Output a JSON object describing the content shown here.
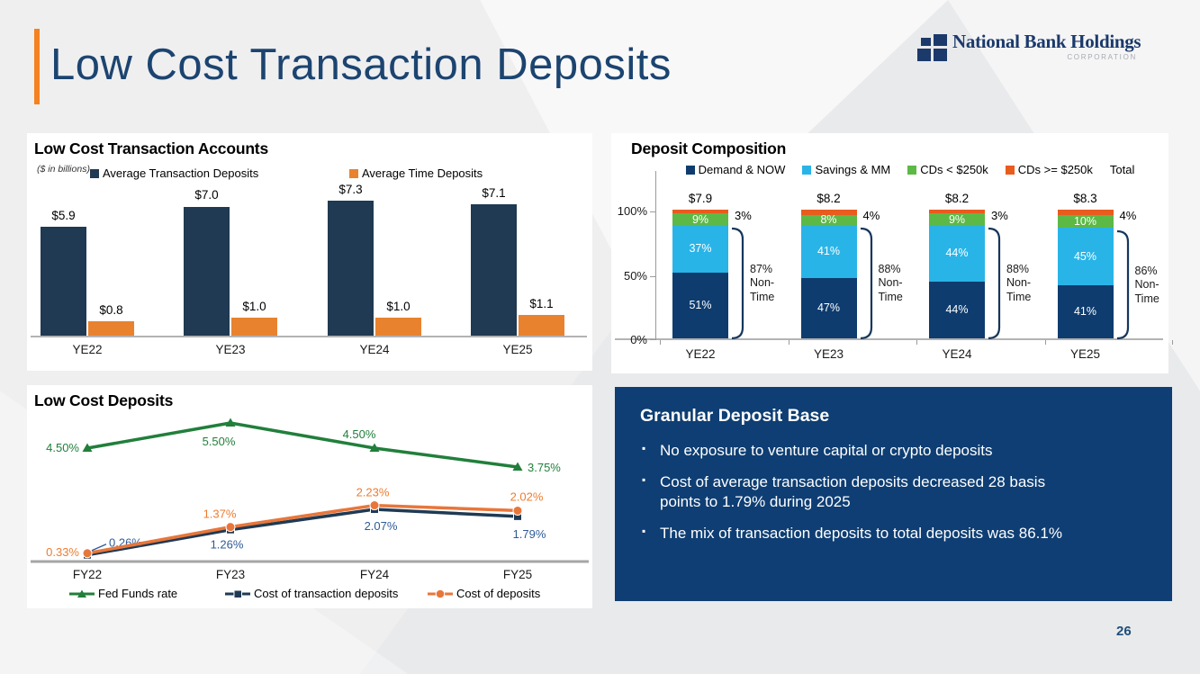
{
  "slide": {
    "title": "Low Cost Transaction Deposits",
    "title_color": "#1c4470",
    "accent_color": "#f58220",
    "page_number": "26",
    "page_number_color": "#1f4e79"
  },
  "logo": {
    "name": "National Bank Holdings",
    "subtitle": "CORPORATION",
    "color": "#1b3a6b"
  },
  "chart_data": [
    {
      "type": "bar",
      "title": "Low Cost Transaction Accounts",
      "subtitle": "($ in billions)",
      "categories": [
        "YE22",
        "YE23",
        "YE24",
        "YE25"
      ],
      "series": [
        {
          "name": "Average Transaction Deposits",
          "color": "#1f3a52",
          "values": [
            5.9,
            7.0,
            7.3,
            7.1
          ],
          "labels": [
            "$5.9",
            "$7.0",
            "$7.3",
            "$7.1"
          ]
        },
        {
          "name": "Average Time Deposits",
          "color": "#e8822f",
          "values": [
            0.8,
            1.0,
            1.0,
            1.1
          ],
          "labels": [
            "$0.8",
            "$1.0",
            "$1.0",
            "$1.1"
          ]
        }
      ],
      "ylim": [
        0,
        7.5
      ],
      "legend_position": "top"
    },
    {
      "type": "bar",
      "stacked": "100%",
      "title": "Deposit Composition",
      "categories": [
        "YE22",
        "YE23",
        "YE24",
        "YE25"
      ],
      "totals": [
        "$7.9",
        "$8.2",
        "$8.2",
        "$8.3"
      ],
      "series": [
        {
          "name": "Demand & NOW",
          "color": "#0e3c6f",
          "values": [
            51,
            47,
            44,
            41
          ]
        },
        {
          "name": "Savings & MM",
          "color": "#29b4e8",
          "values": [
            37,
            41,
            44,
            45
          ]
        },
        {
          "name": "CDs < $250k",
          "color": "#5db946",
          "values": [
            9,
            8,
            9,
            10
          ]
        },
        {
          "name": "CDs >= $250k",
          "color": "#e85c1e",
          "values": [
            3,
            4,
            3,
            4
          ]
        }
      ],
      "legend_extra": "Total",
      "non_time": {
        "values": [
          "87%",
          "88%",
          "88%",
          "86%"
        ],
        "label_line1": "Non-",
        "label_line2": "Time"
      },
      "yticks": [
        "100%",
        "50%",
        "0%"
      ],
      "legend_position": "top"
    },
    {
      "type": "line",
      "title": "Low Cost Deposits",
      "x": [
        "FY22",
        "FY23",
        "FY24",
        "FY25"
      ],
      "series": [
        {
          "name": "Fed Funds rate",
          "color": "#217f3b",
          "marker": "triangle",
          "values": [
            4.5,
            5.5,
            4.5,
            3.75
          ],
          "labels": [
            "4.50%",
            "5.50%",
            "4.50%",
            "3.75%"
          ]
        },
        {
          "name": "Cost of transaction deposits",
          "color": "#1f3a54",
          "label_color": "#2e5b97",
          "marker": "square",
          "values": [
            0.26,
            1.26,
            2.07,
            1.79
          ],
          "labels": [
            "0.26%",
            "1.26%",
            "2.07%",
            "1.79%"
          ]
        },
        {
          "name": "Cost of deposits",
          "color": "#e8763a",
          "label_color": "#ed7d31",
          "marker": "circle",
          "values": [
            0.33,
            1.37,
            2.23,
            2.02
          ],
          "labels": [
            "0.33%",
            "1.37%",
            "2.23%",
            "2.02%"
          ]
        }
      ],
      "ylim": [
        0,
        6
      ],
      "legend_position": "bottom"
    }
  ],
  "granular_deposit_base": {
    "title": "Granular Deposit Base",
    "bg_color": "#0e3e73",
    "bullets": [
      "No exposure to venture capital or crypto deposits",
      "Cost of average transaction deposits decreased 28 basis\npoints to 1.79% during 2025",
      "The mix of transaction deposits to total deposits was 86.1%"
    ]
  }
}
